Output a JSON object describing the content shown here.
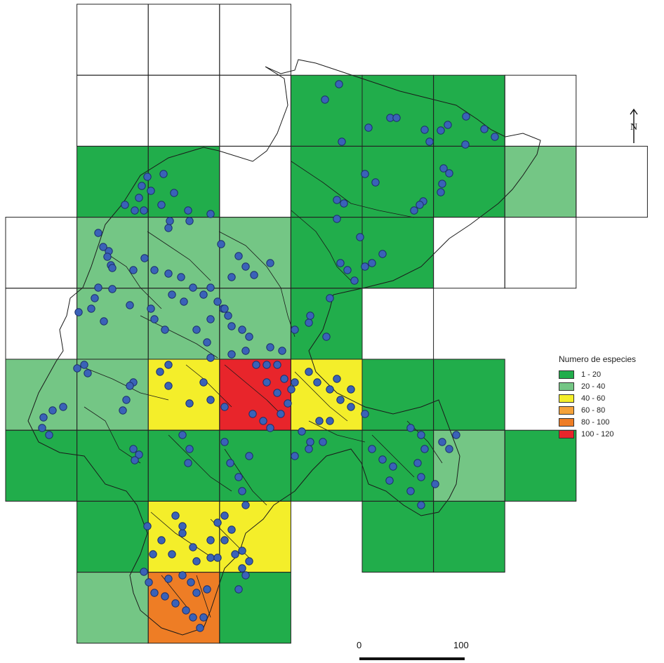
{
  "legend": {
    "title": "Numero de especies",
    "items": [
      {
        "label": "1 - 20",
        "color": "#21ad4b"
      },
      {
        "label": "20 - 40",
        "color": "#74c685"
      },
      {
        "label": "40 - 60",
        "color": "#f4ee2a"
      },
      {
        "label": "60 - 80",
        "color": "#f5a23a"
      },
      {
        "label": "80 - 100",
        "color": "#ee7d25"
      },
      {
        "label": "100 - 120",
        "color": "#e8252b"
      }
    ]
  },
  "scale_bar": {
    "start": "0",
    "end": "100"
  },
  "north_arrow": {
    "icon": "north-arrow-icon",
    "label": "N"
  },
  "grid": {
    "cols": 9,
    "rows": 9,
    "cells": [
      [
        -1,
        0,
        0,
        0,
        -1,
        -1,
        -1,
        -1,
        -1
      ],
      [
        -1,
        0,
        0,
        0,
        1,
        1,
        1,
        0,
        -1
      ],
      [
        -1,
        1,
        1,
        0,
        1,
        1,
        1,
        2,
        0
      ],
      [
        0,
        2,
        2,
        2,
        1,
        1,
        0,
        0,
        -1
      ],
      [
        0,
        2,
        2,
        2,
        1,
        0,
        -1,
        -1,
        -1
      ],
      [
        2,
        2,
        3,
        6,
        3,
        1,
        1,
        -1,
        -1
      ],
      [
        1,
        1,
        1,
        1,
        1,
        1,
        2,
        1,
        -1
      ],
      [
        -1,
        1,
        3,
        3,
        -1,
        1,
        1,
        -1,
        -1
      ],
      [
        -1,
        2,
        5,
        1,
        -1,
        -1,
        -1,
        -1,
        -1
      ]
    ]
  }
}
